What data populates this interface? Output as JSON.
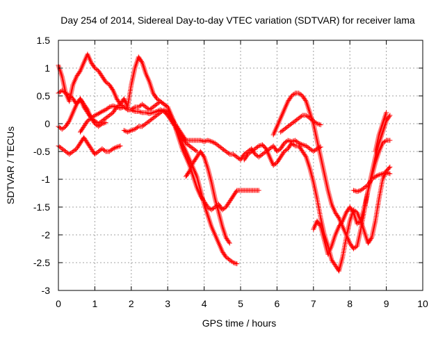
{
  "chart_data": {
    "type": "scatter",
    "title": "Day 254 of 2014, Sidereal Day-to-day VTEC variation (SDTVAR) for receiver lama",
    "xlabel": "GPS time / hours",
    "ylabel": "SDTVAR / TECUs",
    "xlim": [
      0,
      10
    ],
    "ylim": [
      -3,
      1.5
    ],
    "xticks": [
      0,
      1,
      2,
      3,
      4,
      5,
      6,
      7,
      8,
      9,
      10
    ],
    "yticks": [
      -3,
      -2.5,
      -2,
      -1.5,
      -1,
      -0.5,
      0,
      0.5,
      1,
      1.5
    ],
    "xtick_labels": [
      "0",
      "1",
      "2",
      "3",
      "4",
      "5",
      "6",
      "7",
      "8",
      "9",
      "10"
    ],
    "ytick_labels": [
      "-3",
      "-2.5",
      "-2",
      "-1.5",
      "-1",
      "-0.5",
      "0",
      "0.5",
      "1",
      "1.5"
    ],
    "grid": true,
    "marker": "+",
    "marker_color": "#ff0000",
    "series": [
      {
        "x": [
          0.0,
          0.1,
          0.2,
          0.3,
          0.4,
          0.5,
          0.6,
          0.7,
          0.8,
          0.9,
          1.0,
          1.1,
          1.2,
          1.3,
          1.4,
          1.5,
          1.6,
          1.7,
          1.8,
          1.9,
          2.0,
          2.1,
          2.2,
          2.3,
          2.4,
          2.5,
          2.6,
          2.7,
          2.8,
          2.9,
          3.0,
          3.1,
          3.2,
          3.3,
          3.4,
          3.5,
          3.6,
          3.7,
          3.8
        ],
        "y": [
          0.55,
          0.6,
          0.55,
          0.5,
          0.45,
          0.35,
          0.45,
          0.3,
          0.2,
          0.1,
          0.15,
          0.18,
          0.22,
          0.25,
          0.3,
          0.32,
          0.3,
          0.28,
          0.3,
          0.25,
          0.25,
          0.22,
          0.22,
          0.2,
          0.2,
          0.18,
          0.2,
          0.22,
          0.25,
          0.22,
          0.15,
          0.05,
          -0.05,
          -0.15,
          -0.25,
          -0.35,
          -0.4,
          -0.45,
          -0.5
        ]
      },
      {
        "x": [
          0.0,
          0.1,
          0.2,
          0.3,
          0.4,
          0.5,
          0.6,
          0.7,
          0.8,
          0.9,
          1.0,
          1.1,
          1.2,
          1.3,
          1.4,
          1.5,
          1.6,
          1.7,
          1.8,
          1.9,
          2.0,
          2.1,
          2.2,
          2.3,
          2.4,
          2.5,
          2.6,
          2.7,
          2.8,
          2.9,
          3.0,
          3.1,
          3.2,
          3.3,
          3.4,
          3.5,
          3.6,
          3.7,
          3.8,
          3.9,
          4.0,
          4.1,
          4.2,
          4.3,
          4.4,
          4.5,
          4.6,
          4.7,
          4.8,
          4.9
        ],
        "y": [
          1.05,
          0.85,
          0.55,
          0.4,
          0.7,
          0.85,
          0.95,
          1.1,
          1.25,
          1.1,
          1.0,
          0.95,
          0.85,
          0.75,
          0.7,
          0.6,
          0.45,
          0.35,
          0.45,
          0.3,
          0.7,
          1.0,
          1.2,
          1.1,
          0.9,
          0.75,
          0.55,
          0.45,
          0.4,
          0.35,
          0.3,
          0.15,
          0.0,
          -0.2,
          -0.35,
          -0.5,
          -0.65,
          -0.8,
          -0.95,
          -1.2,
          -1.45,
          -1.65,
          -1.85,
          -2.0,
          -2.15,
          -2.3,
          -2.4,
          -2.45,
          -2.5,
          -2.52
        ]
      },
      {
        "x": [
          0.0,
          0.1,
          0.2,
          0.3,
          0.4,
          0.5,
          0.6,
          0.7,
          0.8,
          0.9,
          1.0,
          1.1,
          1.2,
          1.3,
          1.4,
          1.5,
          1.6,
          1.7,
          1.8,
          1.9,
          2.0,
          2.1,
          2.2,
          2.3,
          2.4,
          2.5,
          2.6,
          2.7,
          2.8,
          2.9,
          3.0,
          3.1,
          3.2,
          3.3,
          3.4,
          3.5,
          3.6,
          3.7,
          3.8,
          3.9,
          4.0,
          4.1,
          4.2,
          4.3,
          4.4,
          4.5,
          4.6,
          4.7,
          4.8,
          4.9,
          5.0,
          5.1,
          5.2,
          5.3,
          5.4,
          5.5
        ],
        "y": [
          -0.05,
          -0.1,
          -0.05,
          0.05,
          0.2,
          0.35,
          0.45,
          0.35,
          0.25,
          0.1,
          0.05,
          0.0,
          0.05,
          0.1,
          0.15,
          0.2,
          0.3,
          0.35,
          0.3,
          0.25,
          0.25,
          0.3,
          0.3,
          0.35,
          0.3,
          0.25,
          0.3,
          0.35,
          0.4,
          0.35,
          0.3,
          0.15,
          -0.05,
          -0.25,
          -0.45,
          -0.6,
          -0.75,
          -0.95,
          -1.15,
          -1.3,
          -1.4,
          -1.5,
          -1.55,
          -1.5,
          -1.45,
          -1.55,
          -1.5,
          -1.4,
          -1.3,
          -1.2,
          -1.2,
          -1.2,
          -1.2,
          -1.2,
          -1.2,
          -1.2
        ]
      },
      {
        "x": [
          0.0,
          0.1,
          0.2,
          0.3,
          0.4,
          0.5,
          0.6,
          0.7,
          0.8,
          0.9,
          1.0,
          1.1,
          1.2,
          1.3,
          1.4,
          1.5,
          1.6,
          1.7
        ],
        "y": [
          -0.4,
          -0.45,
          -0.5,
          -0.55,
          -0.5,
          -0.45,
          -0.35,
          -0.25,
          -0.35,
          -0.45,
          -0.55,
          -0.5,
          -0.45,
          -0.5,
          -0.5,
          -0.45,
          -0.42,
          -0.4
        ]
      },
      {
        "x": [
          0.6,
          0.7,
          0.8,
          0.9,
          1.0,
          1.1,
          1.2,
          1.3
        ],
        "y": [
          -0.15,
          -0.05,
          0.05,
          0.1,
          0.0,
          -0.05,
          0.0,
          0.02
        ]
      },
      {
        "x": [
          1.8,
          1.9,
          2.0,
          2.1,
          2.2,
          2.3,
          2.4,
          2.5,
          2.6,
          2.7,
          2.8,
          2.9,
          3.0,
          3.1,
          3.2,
          3.3,
          3.4,
          3.5,
          3.6,
          3.7,
          3.8,
          3.9,
          4.0,
          4.1,
          4.2,
          4.3,
          4.4,
          4.5,
          4.6,
          4.7,
          4.8,
          4.9,
          5.0,
          5.1,
          5.2,
          5.3,
          5.4,
          5.5,
          5.6,
          5.7,
          5.8,
          5.9,
          6.0,
          6.1,
          6.2,
          6.3,
          6.4,
          6.5,
          6.6,
          6.7,
          6.8,
          6.9,
          7.0,
          7.1,
          7.2
        ],
        "y": [
          -0.12,
          -0.15,
          -0.12,
          -0.1,
          -0.05,
          -0.05,
          0.0,
          0.05,
          0.1,
          0.15,
          0.2,
          0.25,
          0.2,
          0.1,
          0.0,
          -0.1,
          -0.2,
          -0.3,
          -0.3,
          -0.3,
          -0.3,
          -0.3,
          -0.32,
          -0.3,
          -0.32,
          -0.35,
          -0.4,
          -0.45,
          -0.5,
          -0.55,
          -0.55,
          -0.6,
          -0.65,
          -0.55,
          -0.5,
          -0.45,
          -0.55,
          -0.6,
          -0.55,
          -0.5,
          -0.45,
          -0.4,
          -0.5,
          -0.45,
          -0.35,
          -0.3,
          -0.32,
          -0.3,
          -0.35,
          -0.38,
          -0.4,
          -0.45,
          -0.5,
          -0.45,
          -0.42
        ]
      },
      {
        "x": [
          3.5,
          3.6,
          3.7,
          3.8,
          3.9,
          4.0,
          4.1,
          4.2,
          4.3,
          4.4,
          4.5,
          4.6,
          4.7
        ],
        "y": [
          -0.95,
          -0.85,
          -0.7,
          -0.6,
          -0.5,
          -0.6,
          -0.8,
          -1.05,
          -1.35,
          -1.6,
          -1.85,
          -2.05,
          -2.15
        ]
      },
      {
        "x": [
          5.1,
          5.2,
          5.3,
          5.4,
          5.5,
          5.6,
          5.7,
          5.8,
          5.9,
          6.0,
          6.1,
          6.2,
          6.3,
          6.4,
          6.5,
          6.6,
          6.7,
          6.8,
          6.9,
          7.0,
          7.1,
          7.2,
          7.3,
          7.4,
          7.5,
          7.6,
          7.7,
          7.8,
          7.9,
          8.0,
          8.1,
          8.2,
          8.3,
          8.4,
          8.5,
          8.6,
          8.7,
          8.8,
          8.9,
          9.0,
          9.1
        ],
        "y": [
          -0.65,
          -0.55,
          -0.5,
          -0.45,
          -0.4,
          -0.38,
          -0.45,
          -0.6,
          -0.75,
          -0.7,
          -0.6,
          -0.5,
          -0.45,
          -0.35,
          -0.4,
          -0.4,
          -0.5,
          -0.6,
          -0.8,
          -1.05,
          -1.35,
          -1.7,
          -2.0,
          -2.2,
          -2.45,
          -2.55,
          -2.65,
          -2.4,
          -2.05,
          -1.75,
          -1.55,
          -1.6,
          -1.75,
          -1.95,
          -2.15,
          -2.05,
          -1.75,
          -1.35,
          -1.0,
          -0.85,
          -0.78
        ]
      },
      {
        "x": [
          5.9,
          6.0,
          6.1,
          6.2,
          6.3,
          6.4,
          6.5,
          6.6,
          6.7,
          6.8,
          6.9,
          7.0,
          7.1,
          7.2,
          7.3,
          7.4,
          7.5,
          7.6,
          7.7,
          7.8,
          7.9,
          8.0,
          8.1,
          8.2,
          8.3,
          8.4,
          8.5,
          8.6,
          8.7,
          8.8,
          8.9,
          9.0,
          9.1
        ],
        "y": [
          -0.2,
          -0.05,
          0.1,
          0.25,
          0.4,
          0.5,
          0.55,
          0.55,
          0.5,
          0.4,
          0.2,
          0.0,
          -0.3,
          -0.6,
          -0.9,
          -1.2,
          -1.45,
          -1.6,
          -1.7,
          -1.85,
          -2.0,
          -2.15,
          -2.25,
          -2.2,
          -1.9,
          -1.55,
          -1.2,
          -0.95,
          -0.7,
          -0.5,
          -0.35,
          -0.3,
          -0.3
        ]
      },
      {
        "x": [
          6.1,
          6.2,
          6.3,
          6.4,
          6.5,
          6.6,
          6.7,
          6.8,
          6.9,
          7.0,
          7.1,
          7.2
        ],
        "y": [
          -0.15,
          -0.1,
          -0.05,
          0.0,
          0.05,
          0.1,
          0.15,
          0.15,
          0.1,
          0.05,
          0.0,
          -0.02
        ]
      },
      {
        "x": [
          7.0,
          7.1,
          7.2,
          7.3,
          7.4,
          7.5,
          7.6,
          7.7,
          7.8,
          7.9,
          8.0,
          8.1,
          8.2,
          8.3,
          8.4,
          8.5,
          8.6,
          8.7,
          8.8,
          8.9,
          9.0,
          9.1
        ],
        "y": [
          -1.9,
          -1.75,
          -1.85,
          -2.1,
          -2.35,
          -2.2,
          -2.0,
          -1.85,
          -1.75,
          -1.6,
          -1.5,
          -1.6,
          -1.8,
          -1.75,
          -1.5,
          -1.2,
          -0.9,
          -0.6,
          -0.35,
          -0.15,
          0.05,
          0.15
        ]
      },
      {
        "x": [
          8.1,
          8.2,
          8.3,
          8.4,
          8.5,
          8.6,
          8.7,
          8.8,
          8.9,
          9.0,
          9.1
        ],
        "y": [
          -1.2,
          -1.22,
          -1.2,
          -1.15,
          -1.1,
          -1.0,
          -0.95,
          -0.92,
          -0.9,
          -0.88,
          -0.9
        ]
      },
      {
        "x": [
          8.7,
          8.8,
          8.9,
          9.0
        ],
        "y": [
          -0.5,
          -0.2,
          0.0,
          0.2
        ]
      }
    ]
  }
}
